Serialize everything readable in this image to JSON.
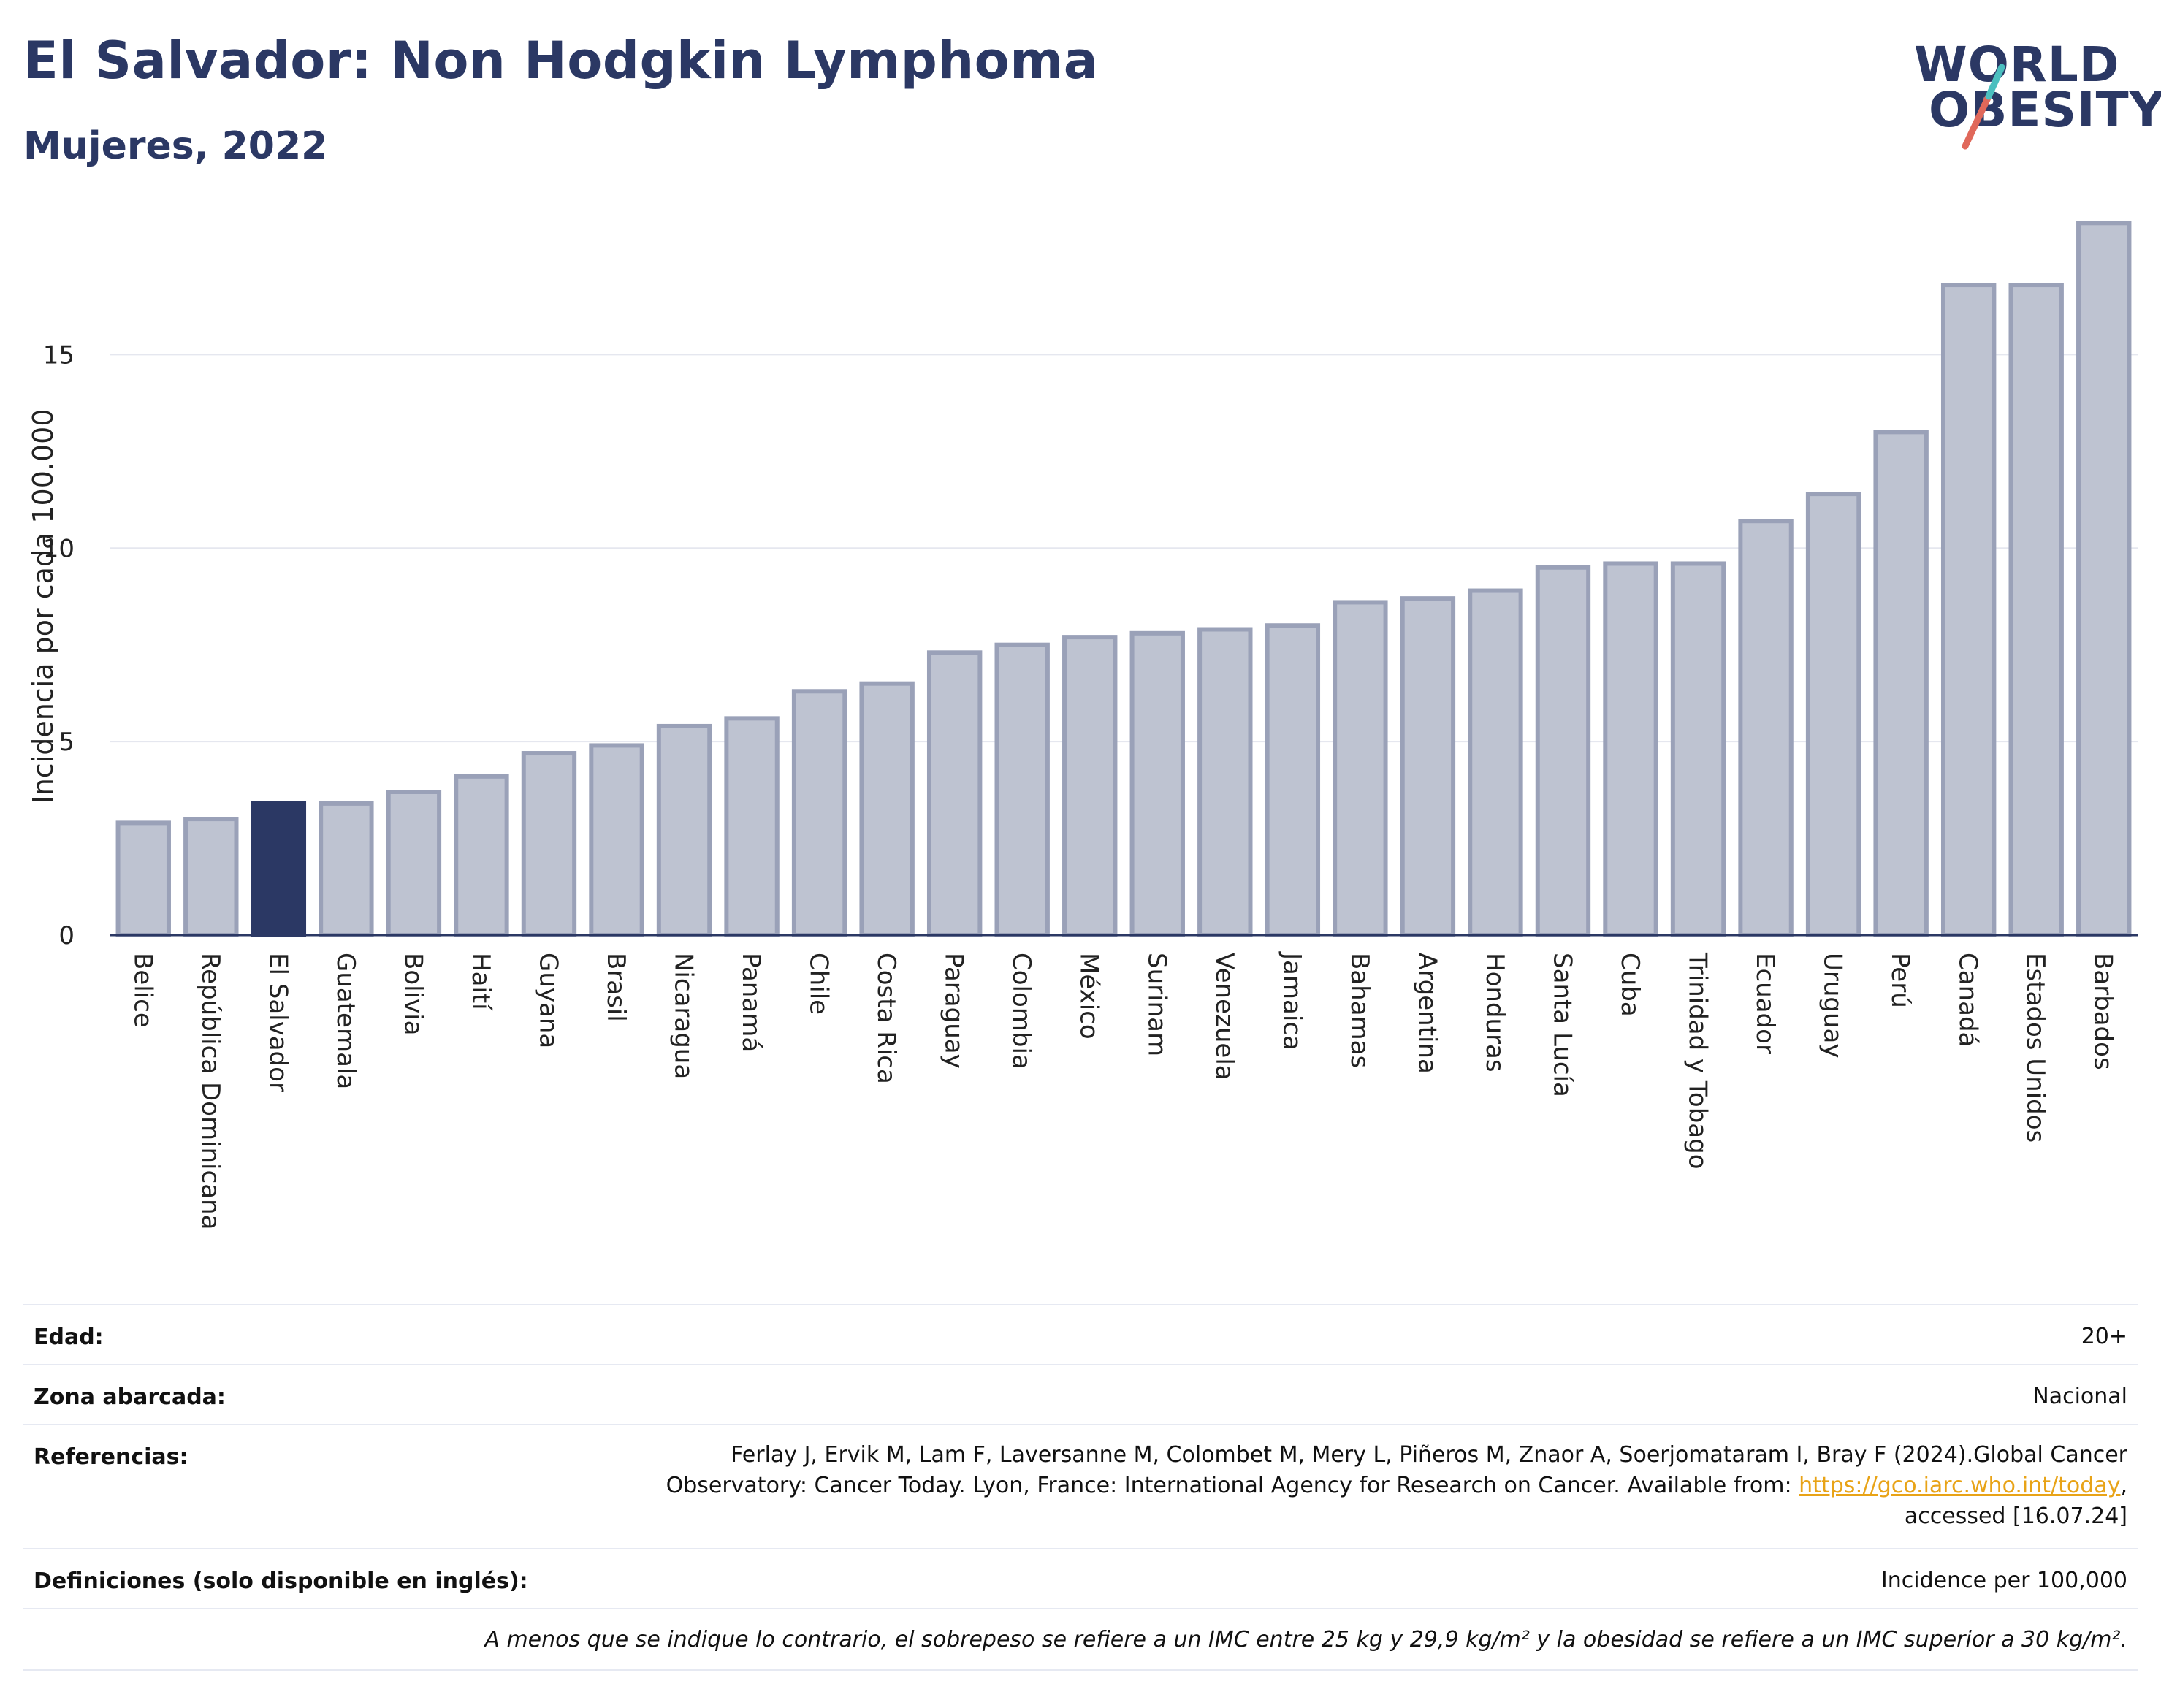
{
  "header": {
    "title": "El Salvador: Non Hodgkin Lymphoma",
    "subtitle": "Mujeres, 2022"
  },
  "logo": {
    "line1": "WORLD",
    "line2": "OBESITY",
    "colors": {
      "text": "#2b3864",
      "slash_red": "#e0685a",
      "slash_teal": "#4bbfbf"
    }
  },
  "colors": {
    "bar_default": "#bec3d1",
    "bar_default_edge": "#9aa1b8",
    "bar_highlight": "#2b3864",
    "axis": "#2b3864",
    "grid": "#e5e7ef"
  },
  "chart_data": {
    "type": "bar",
    "ylabel": "Incidencia por cada 100.000",
    "xlabel": "",
    "ylim": [
      0,
      18.5
    ],
    "yticks": [
      0,
      5,
      10,
      15
    ],
    "grid": true,
    "highlight": "El Salvador",
    "categories": [
      "Belice",
      "República Dominicana",
      "El Salvador",
      "Guatemala",
      "Bolivia",
      "Haití",
      "Guyana",
      "Brasil",
      "Nicaragua",
      "Panamá",
      "Chile",
      "Costa Rica",
      "Paraguay",
      "Colombia",
      "México",
      "Surinam",
      "Venezuela",
      "Jamaica",
      "Bahamas",
      "Argentina",
      "Honduras",
      "Santa Lucía",
      "Cuba",
      "Trinidad y Tobago",
      "Ecuador",
      "Uruguay",
      "Perú",
      "Canadá",
      "Estados Unidos",
      "Barbados"
    ],
    "values": [
      2.9,
      3.0,
      3.4,
      3.4,
      3.7,
      4.1,
      4.7,
      4.9,
      5.4,
      5.6,
      6.3,
      6.5,
      7.3,
      7.5,
      7.7,
      7.8,
      7.9,
      8.0,
      8.6,
      8.7,
      8.9,
      9.5,
      9.6,
      9.6,
      10.7,
      11.4,
      13.0,
      16.8,
      16.8,
      18.4
    ]
  },
  "info": {
    "edad": {
      "label": "Edad:",
      "value": "20+"
    },
    "zona": {
      "label": "Zona abarcada:",
      "value": "Nacional"
    },
    "referencias": {
      "label": "Referencias:",
      "line1": "Ferlay J, Ervik M, Lam F, Laversanne M, Colombet M, Mery L, Piñeros M, Znaor A, Soerjomataram I, Bray F (2024).Global Cancer",
      "line2_pre": "Observatory: Cancer Today. Lyon, France: International Agency for Research on Cancer. Available from: ",
      "link": "https://gco.iarc.who.int/today",
      "line2_post": ",",
      "line3": "accessed [16.07.24]"
    },
    "definiciones": {
      "label": "Definiciones (solo disponible en inglés):",
      "value": "Incidence per 100,000"
    },
    "footnote": "A menos que se indique lo contrario, el sobrepeso se refiere a un IMC entre 25 kg y 29,9 kg/m² y la obesidad se refiere a un IMC superior a 30 kg/m²."
  }
}
